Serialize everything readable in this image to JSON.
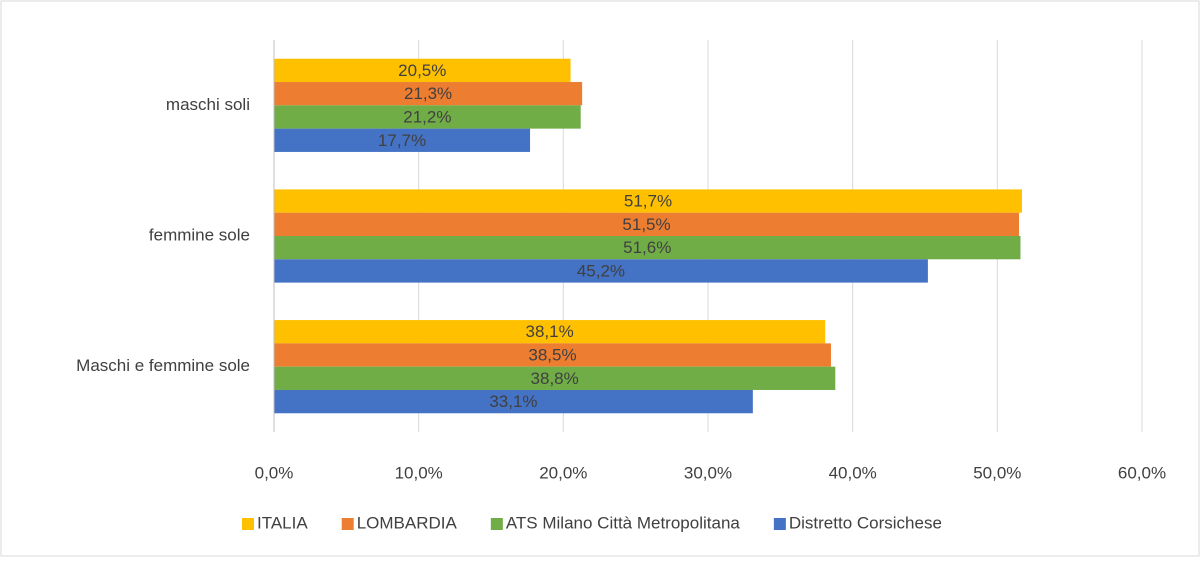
{
  "chart_data": {
    "type": "hbar",
    "categories": [
      "maschi soli",
      "femmine sole",
      "Maschi e femmine sole"
    ],
    "series": [
      {
        "name": "ITALIA",
        "color": "#ffc000",
        "values": [
          20.5,
          51.7,
          38.1
        ],
        "value_labels": [
          "20,5%",
          "51,7%",
          "38,1%"
        ]
      },
      {
        "name": "LOMBARDIA",
        "color": "#ed7d31",
        "values": [
          21.3,
          51.5,
          38.5
        ],
        "value_labels": [
          "21,3%",
          "51,5%",
          "38,5%"
        ]
      },
      {
        "name": "ATS Milano Città Metropolitana",
        "color": "#70ad47",
        "values": [
          21.2,
          51.6,
          38.8
        ],
        "value_labels": [
          "21,2%",
          "51,6%",
          "38,8%"
        ]
      },
      {
        "name": "Distretto Corsichese",
        "color": "#4472c4",
        "values": [
          17.7,
          45.2,
          33.1
        ],
        "value_labels": [
          "17,7%",
          "45,2%",
          "33,1%"
        ]
      }
    ],
    "xlim": [
      0,
      60
    ],
    "xticks": [
      {
        "value": 0,
        "label": "0,0%"
      },
      {
        "value": 10,
        "label": "10,0%"
      },
      {
        "value": 20,
        "label": "20,0%"
      },
      {
        "value": 30,
        "label": "30,0%"
      },
      {
        "value": 40,
        "label": "40,0%"
      },
      {
        "value": 50,
        "label": "50,0%"
      },
      {
        "value": 60,
        "label": "60,0%"
      }
    ],
    "grid": true,
    "legend": "bottom"
  }
}
